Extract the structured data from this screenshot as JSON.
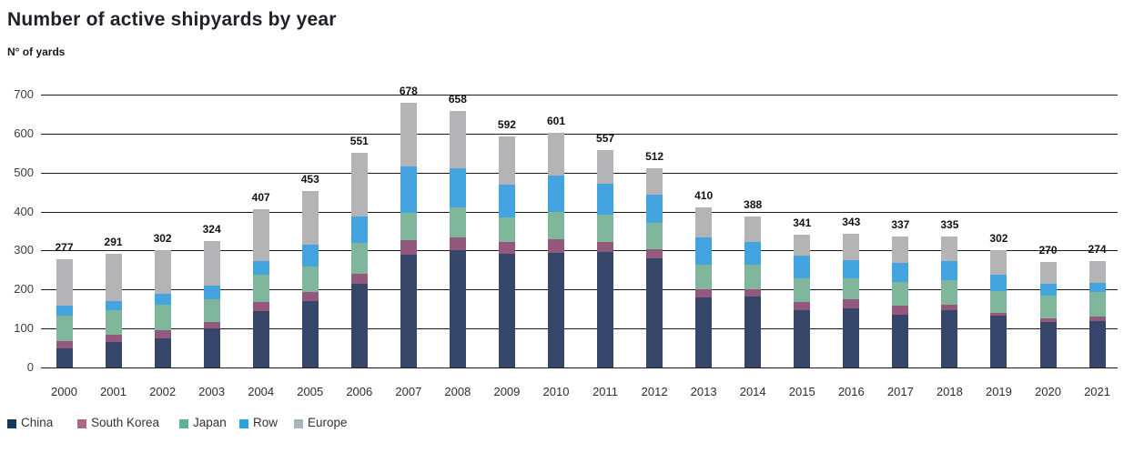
{
  "title": "Number of active shipyards by year",
  "ylabel": "N° of yards",
  "chart_data": {
    "type": "bar",
    "stacked": true,
    "title": "Number of active shipyards by year",
    "ylabel": "N° of yards",
    "xlabel": "",
    "grid": true,
    "legend_position": "bottom",
    "ylim": [
      0,
      700
    ],
    "yticks": [
      0,
      100,
      200,
      300,
      400,
      500,
      600,
      700
    ],
    "categories": [
      "2000",
      "2001",
      "2002",
      "2003",
      "2004",
      "2005",
      "2006",
      "2007",
      "2008",
      "2009",
      "2010",
      "2011",
      "2012",
      "2013",
      "2014",
      "2015",
      "2016",
      "2017",
      "2018",
      "2019",
      "2020",
      "2021"
    ],
    "totals": [
      277,
      291,
      302,
      324,
      407,
      453,
      551,
      678,
      658,
      592,
      601,
      557,
      512,
      410,
      388,
      341,
      343,
      337,
      335,
      302,
      270,
      274
    ],
    "series": [
      {
        "name": "China",
        "color": "#36466b",
        "legend_color": "#123a60",
        "values": [
          49,
          66,
          75,
          100,
          145,
          171,
          215,
          290,
          302,
          291,
          295,
          297,
          280,
          180,
          182,
          148,
          151,
          135,
          147,
          132,
          116,
          120
        ]
      },
      {
        "name": "South Korea",
        "color": "#92597d",
        "legend_color": "#b0678e",
        "values": [
          18,
          19,
          20,
          17,
          23,
          23,
          26,
          36,
          32,
          32,
          33,
          24,
          24,
          21,
          19,
          19,
          23,
          23,
          13,
          8,
          9,
          11
        ]
      },
      {
        "name": "Japan",
        "color": "#80b79c",
        "legend_color": "#5bb592",
        "values": [
          67,
          62,
          67,
          58,
          69,
          66,
          78,
          71,
          77,
          61,
          72,
          72,
          68,
          63,
          62,
          62,
          55,
          61,
          63,
          55,
          59,
          63
        ]
      },
      {
        "name": "Row",
        "color": "#44a4df",
        "legend_color": "#2aa2df",
        "values": [
          25,
          23,
          28,
          36,
          37,
          55,
          69,
          119,
          100,
          85,
          93,
          78,
          72,
          70,
          59,
          57,
          47,
          50,
          50,
          44,
          30,
          22
        ]
      },
      {
        "name": "Europe",
        "color": "#b4b4b7",
        "legend_color": "#a7b6bd",
        "values": [
          118,
          121,
          112,
          113,
          133,
          138,
          163,
          162,
          147,
          123,
          108,
          86,
          68,
          76,
          66,
          55,
          67,
          68,
          62,
          63,
          56,
          58
        ]
      }
    ]
  }
}
